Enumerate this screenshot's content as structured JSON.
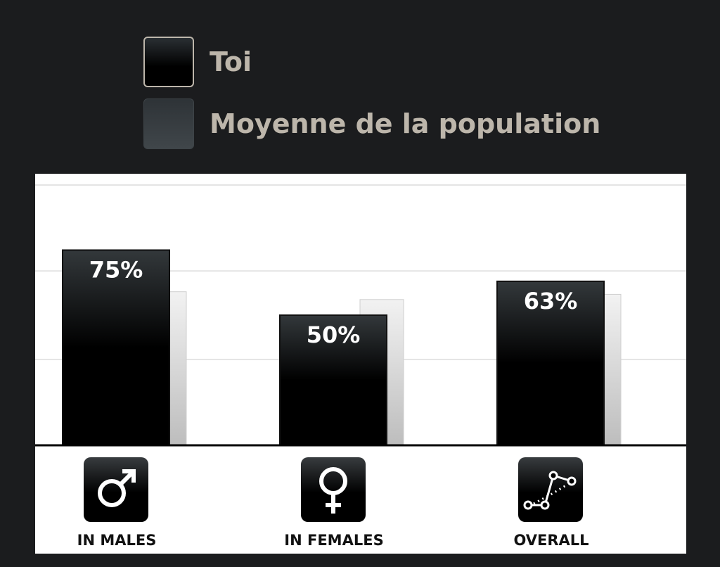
{
  "legend": {
    "you": "Toi",
    "average": "Moyenne de la population"
  },
  "colors": {
    "background": "#1b1c1e",
    "panel": "#ffffff",
    "you_bar": "#000000",
    "average_bar": "#d8d8d8",
    "legend_text": "#bdb6ab"
  },
  "chart_data": {
    "type": "bar",
    "categories": [
      "IN MALES",
      "IN FEMALES",
      "OVERALL"
    ],
    "category_icons": [
      "male-symbol-icon",
      "female-symbol-icon",
      "line-chart-icon"
    ],
    "series": [
      {
        "name": "Toi",
        "values": [
          75,
          50,
          63
        ],
        "labels": [
          "75%",
          "50%",
          "63%"
        ]
      },
      {
        "name": "Moyenne de la population",
        "values": [
          59,
          56,
          58
        ]
      }
    ],
    "ylim": [
      0,
      100
    ],
    "grid": true,
    "legend_position": "top"
  }
}
